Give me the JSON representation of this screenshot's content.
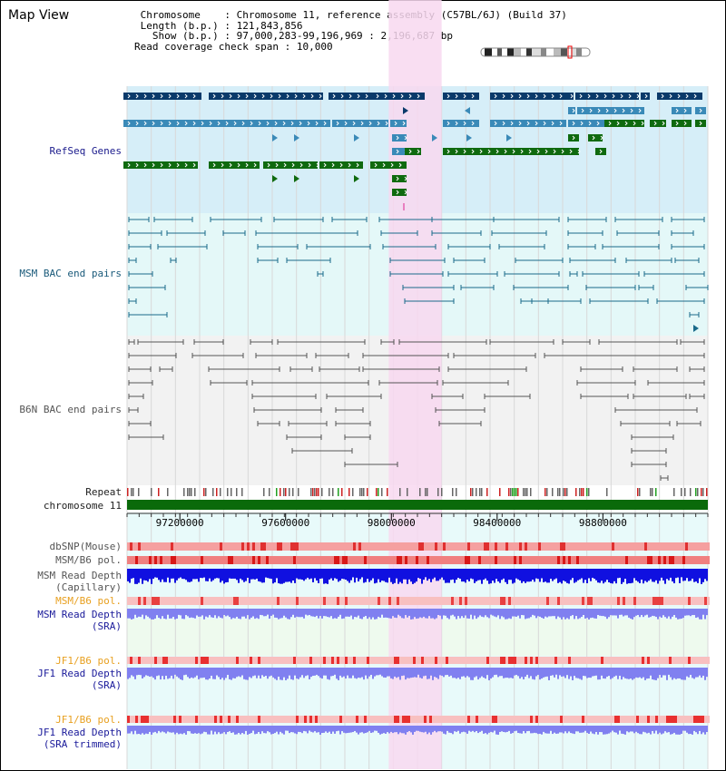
{
  "header": {
    "title": "Map View",
    "chromosome_label": "Chromosome",
    "chromosome_value": "Chromosome 11, reference assembly (C57BL/6J) (Build 37)",
    "length_label": "Length (b.p.)",
    "length_value": "121,843,856",
    "show_label": "Show (b.p.)",
    "show_value": "97,000,283-99,196,969 : 2,196,687 bp",
    "coverage_label": "Read coverage check span",
    "coverage_value": "10,000"
  },
  "tracks": {
    "refseq": "RefSeq Genes",
    "msm_bac": "MSM BAC end pairs",
    "b6n_bac": "B6N BAC end pairs",
    "repeat": "Repeat",
    "chromosome": "chromosome 11",
    "dbsnp": "dbSNP(Mouse)",
    "msm_b6_pol_1": "MSM/B6 pol.",
    "msm_depth_cap_1": "MSM Read Depth",
    "msm_depth_cap_2": "(Capillary)",
    "msm_b6_pol_2": "MSM/B6 pol.",
    "msm_depth_sra_1": "MSM Read Depth",
    "msm_depth_sra_2": "(SRA)",
    "jf1_b6_pol_1": "JF1/B6 pol.",
    "jf1_depth_sra_1": "JF1 Read Depth",
    "jf1_depth_sra_2": "(SRA)",
    "jf1_b6_pol_2": "JF1/B6 pol.",
    "jf1_depth_trim_1": "JF1 Read Depth",
    "jf1_depth_trim_2": "(SRA trimmed)"
  },
  "axis": {
    "ticks": [
      "97200000",
      "97600000",
      "98000000",
      "98400000",
      "98800000"
    ],
    "tick_values": [
      97200000,
      97600000,
      98000000,
      98400000,
      98800000
    ],
    "range": [
      97000283,
      99196969
    ]
  },
  "highlight": {
    "start": 97990000,
    "end": 98190000
  },
  "colors": {
    "refseq_bg": "#d6eef8",
    "msm_bg": "#e4f8f8",
    "b6n_bg": "#f2f2f2",
    "highlight": "#f8d8f0",
    "refseq_dark": "#0a3a6a",
    "refseq_mid": "#3a8ab8",
    "refseq_green": "#0f6a0f",
    "msm_line": "#1a6a8a",
    "b6n_line": "#555555",
    "chromosome_bar": "#0a6a0a",
    "depth_blue": "#1010e0",
    "depth_light": "#8080f0"
  },
  "icons": {
    "ideogram": "chromosome-ideogram"
  }
}
